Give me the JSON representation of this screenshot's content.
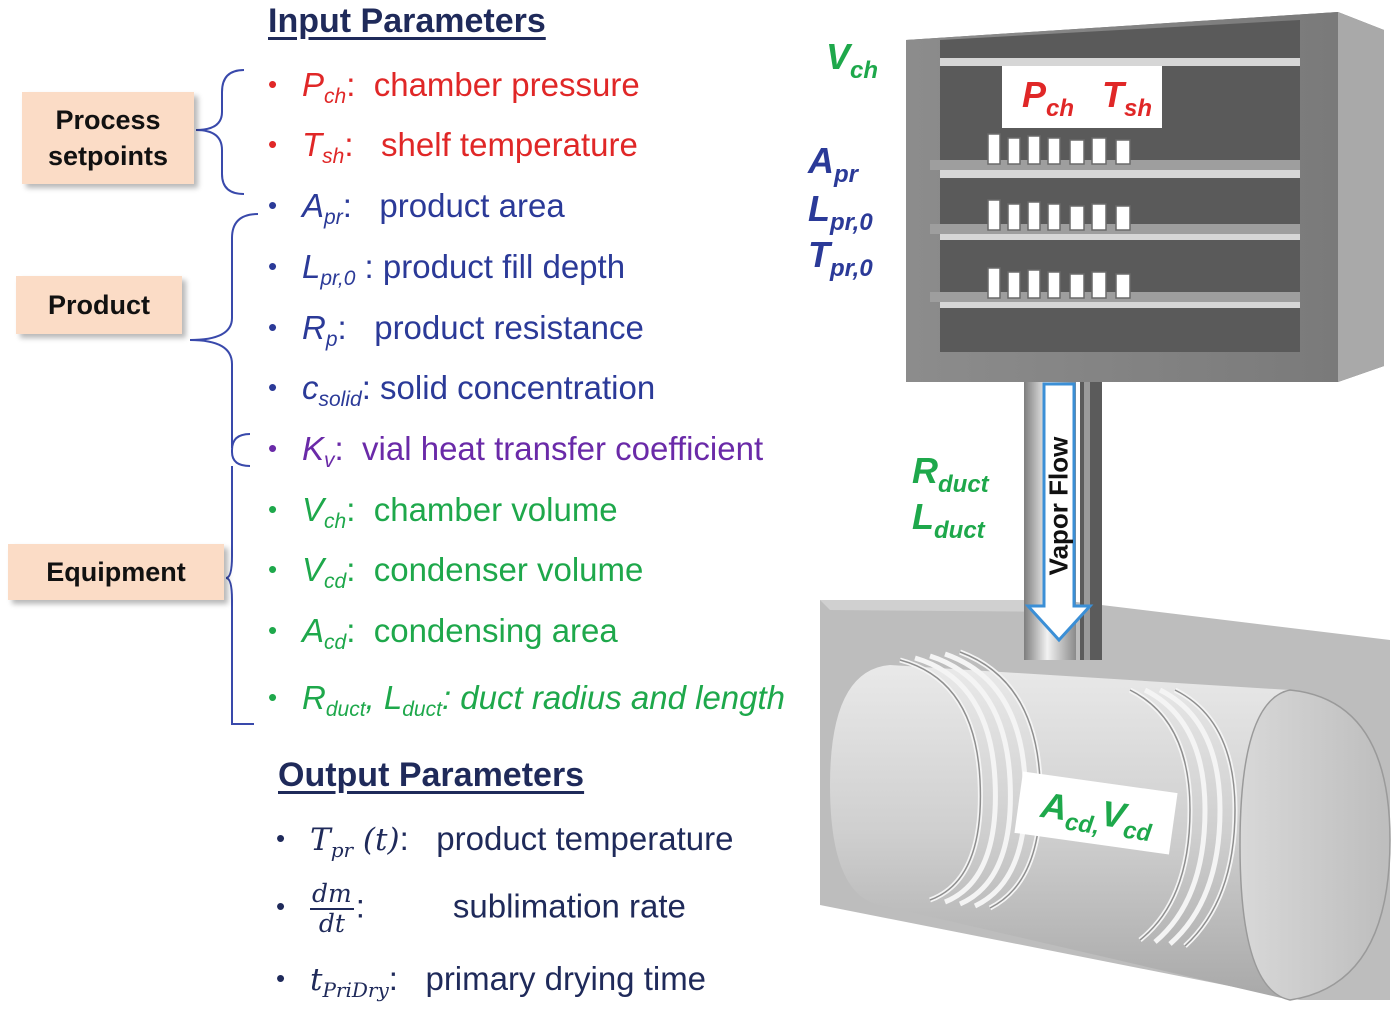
{
  "input_heading": "Input Parameters",
  "output_heading": "Output Parameters",
  "groups": {
    "process": "Process setpoints",
    "product": "Product",
    "equipment": "Equipment"
  },
  "inputs": [
    {
      "sym": "P",
      "sub": "ch",
      "sep": ":",
      "desc": "chamber pressure"
    },
    {
      "sym": "T",
      "sub": "sh",
      "sep": ":",
      "desc": "shelf temperature"
    },
    {
      "sym": "A",
      "sub": "pr",
      "sep": ":",
      "desc": "product area"
    },
    {
      "sym": "L",
      "sub": "pr,0",
      "sep": " :",
      "desc": "product fill depth"
    },
    {
      "sym": "R",
      "sub": "p",
      "sep": ":",
      "desc": "product resistance"
    },
    {
      "sym": "c",
      "sub": "solid",
      "sep": ":",
      "desc": "solid concentration"
    },
    {
      "sym": "K",
      "sub": "v",
      "sep": ":",
      "desc": "vial heat transfer coefficient"
    },
    {
      "sym": "V",
      "sub": "ch",
      "sep": ":",
      "desc": "chamber volume"
    },
    {
      "sym": "V",
      "sub": "cd",
      "sep": ":",
      "desc": "condenser volume"
    },
    {
      "sym": "A",
      "sub": "cd",
      "sep": ":",
      "desc": "condensing area"
    },
    {
      "sym": "R",
      "sub": "duct",
      "sep": ",",
      "sym2": "L",
      "sub2": "duct",
      "sep2": ":",
      "desc": "duct radius and length"
    }
  ],
  "outputs": [
    {
      "sym": "T",
      "sub": "pr",
      "arg": "(t)",
      "sep": ":",
      "desc": "product temperature"
    },
    {
      "frac_num": "dm",
      "frac_den": "dt",
      "sep": ":",
      "desc": "sublimation rate"
    },
    {
      "sym": "t",
      "sub": "PriDry",
      "sep": ":",
      "desc": "primary drying time"
    }
  ],
  "diagram": {
    "v_ch": {
      "sym": "V",
      "sub": "ch"
    },
    "p_ch": {
      "sym": "P",
      "sub": "ch"
    },
    "t_sh": {
      "sym": "T",
      "sub": "sh"
    },
    "a_pr": {
      "sym": "A",
      "sub": "pr"
    },
    "l_pr0": {
      "sym": "L",
      "sub": "pr,0"
    },
    "t_pr0": {
      "sym": "T",
      "sub": "pr,0"
    },
    "r_duct": {
      "sym": "R",
      "sub": "duct"
    },
    "l_duct": {
      "sym": "L",
      "sub": "duct"
    },
    "vapor_flow": "Vapor Flow",
    "a_cd": {
      "sym": "A",
      "sub": "cd,"
    },
    "v_cd": {
      "sym": "V",
      "sub": "cd"
    }
  },
  "colors": {
    "process": "#e02727",
    "product": "#2b3a98",
    "vial": "#6a2aa8",
    "equipment": "#1ea84b",
    "output": "#1f2a5a",
    "box": "#fbdcc6",
    "bracket": "#3949ab",
    "arrow": "#3b8fd6"
  }
}
